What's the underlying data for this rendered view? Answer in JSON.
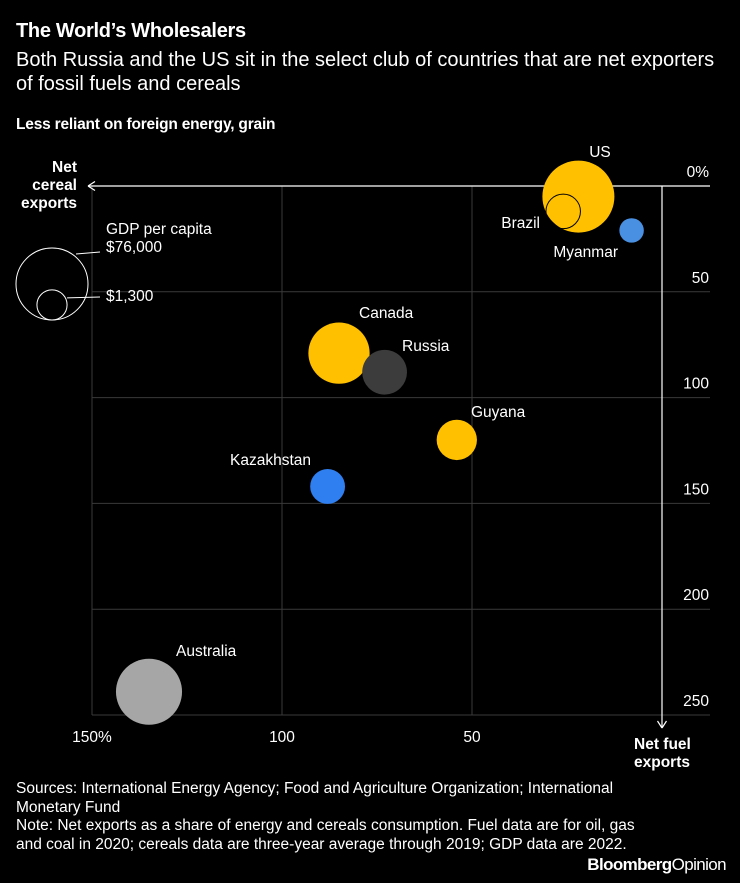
{
  "title": "The World’s Wholesalers",
  "subtitle": "Both Russia and the US sit in the select club of countries that are net exporters of fossil fuels and cereals",
  "top_label": "Less reliant on foreign energy, grain",
  "chart_data": {
    "type": "scatter",
    "title": "The World’s Wholesalers",
    "xlabel": "Net fuel exports",
    "ylabel": "Net cereal exports",
    "x_reversed": true,
    "y_reversed": true,
    "xlim": [
      150,
      0
    ],
    "ylim": [
      0,
      250
    ],
    "x_ticks": [
      {
        "value": 150,
        "label": "150%"
      },
      {
        "value": 100,
        "label": "100"
      },
      {
        "value": 50,
        "label": "50"
      }
    ],
    "y_ticks": [
      {
        "value": 0,
        "label": "0%"
      },
      {
        "value": 50,
        "label": "50"
      },
      {
        "value": 100,
        "label": "100"
      },
      {
        "value": 150,
        "label": "150"
      },
      {
        "value": 200,
        "label": "200"
      },
      {
        "value": 250,
        "label": "250"
      }
    ],
    "points": [
      {
        "name": "US",
        "x": 22,
        "y": 5,
        "gdp": 76000,
        "color": "#FFC000"
      },
      {
        "name": "Brazil",
        "x": 26,
        "y": 12,
        "gdp": 8900,
        "color": "#FFC000",
        "outline": true
      },
      {
        "name": "Myanmar",
        "x": 8,
        "y": 21,
        "gdp": 1300,
        "color": "#4A90E2"
      },
      {
        "name": "Canada",
        "x": 85,
        "y": 79,
        "gdp": 55000,
        "color": "#FFC000"
      },
      {
        "name": "Russia",
        "x": 73,
        "y": 88,
        "gdp": 15000,
        "color": "#3C3C3C"
      },
      {
        "name": "Guyana",
        "x": 54,
        "y": 120,
        "gdp": 18000,
        "color": "#FFC000"
      },
      {
        "name": "Kazakhstan",
        "x": 88,
        "y": 142,
        "gdp": 11400,
        "color": "#2F7FF0"
      },
      {
        "name": "Australia",
        "x": 135,
        "y": 239,
        "gdp": 64000,
        "color": "#A6A6A6"
      }
    ],
    "size_legend": {
      "title": "GDP per capita",
      "max_label": "$76,000",
      "min_label": "$1,300",
      "max_value": 76000,
      "min_value": 1300
    },
    "axis_annotations": {
      "y_title": "Net cereal exports",
      "x_title": "Net fuel exports"
    }
  },
  "footer": {
    "sources": "Sources: International Energy Agency; Food and Agriculture Organization; International Monetary Fund",
    "note": "Note: Net exports as a share of energy and cereals consumption. Fuel data are for oil, gas and coal in 2020; cereals data are three-year average through 2019; GDP data are 2022."
  },
  "brand": {
    "main": "Bloomberg",
    "sub": "Opinion"
  }
}
